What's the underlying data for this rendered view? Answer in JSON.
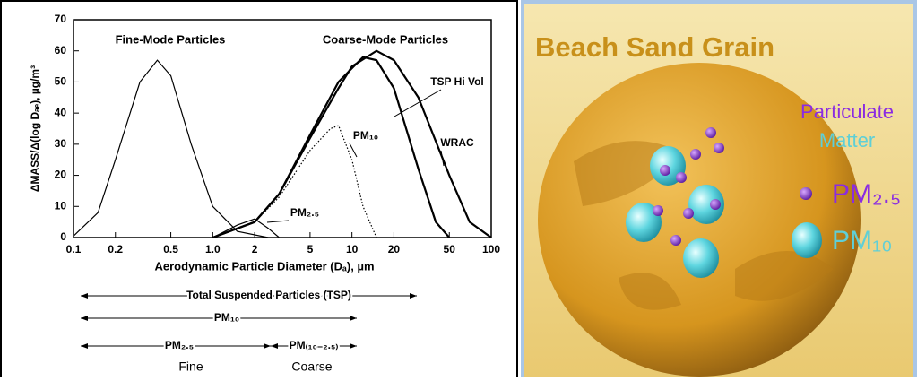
{
  "chart_data": {
    "type": "line",
    "xlabel": "Aerodynamic Particle Diameter (Dₐ), µm",
    "ylabel": "ΔMASS/Δ(log Dₐₑ), µg/m³",
    "xscale": "log",
    "xlim": [
      0.1,
      100
    ],
    "xticks": [
      0.1,
      0.2,
      0.5,
      {
        "value": 1,
        "label": "1.0"
      },
      2,
      5,
      10,
      20,
      50,
      100
    ],
    "ylim": [
      0,
      70
    ],
    "yticks": [
      0,
      10,
      20,
      30,
      40,
      50,
      60,
      70
    ],
    "annotations": [
      "Fine-Mode Particles",
      "Coarse-Mode Particles"
    ],
    "series": [
      {
        "color": "#000000",
        "width": 1.2,
        "style": "solid",
        "x": [
          0.1,
          0.15,
          0.2,
          0.3,
          0.4,
          0.5,
          0.7,
          1,
          1.5,
          2.5
        ],
        "values": [
          0.5,
          8,
          25,
          50,
          57,
          52,
          30,
          10,
          2,
          0
        ]
      },
      {
        "name": "TSP Hi Vol",
        "color": "#000000",
        "width": 2.2,
        "style": "solid",
        "x": [
          1,
          2,
          3,
          5,
          8,
          12,
          15,
          20,
          30,
          40,
          50
        ],
        "values": [
          0,
          5,
          14,
          33,
          50,
          58,
          57,
          48,
          22,
          5,
          0
        ]
      },
      {
        "name": "WRAC",
        "color": "#000000",
        "width": 2.2,
        "style": "solid",
        "x": [
          1,
          2,
          3,
          5,
          8,
          10,
          15,
          20,
          30,
          50,
          70,
          100
        ],
        "values": [
          0,
          5,
          14,
          32,
          48,
          55,
          60,
          57,
          45,
          20,
          5,
          0
        ]
      },
      {
        "name": "PM₁₀",
        "color": "#000000",
        "width": 1.2,
        "style": "dotted",
        "x": [
          1,
          2,
          3,
          5,
          7,
          8,
          10,
          12,
          15
        ],
        "values": [
          0,
          5,
          13,
          28,
          35,
          36,
          25,
          10,
          0
        ]
      },
      {
        "name": "PM₂.₅",
        "color": "#000000",
        "width": 1.2,
        "style": "solid",
        "x": [
          1,
          1.5,
          2,
          2.5,
          3
        ],
        "values": [
          0,
          4,
          6,
          3,
          0
        ]
      }
    ],
    "ranges": [
      "Total Suspended Particles (TSP)",
      "PM₁₀",
      "PM₂.₅",
      "PM₍₁₀₋₂.₅₎",
      "Fine",
      "Coarse"
    ]
  },
  "illustration": {
    "title": "Beach Sand Grain",
    "legend_title": [
      "Particulate",
      "Matter"
    ],
    "items": [
      "PM₂.₅",
      "PM₁₀"
    ]
  }
}
